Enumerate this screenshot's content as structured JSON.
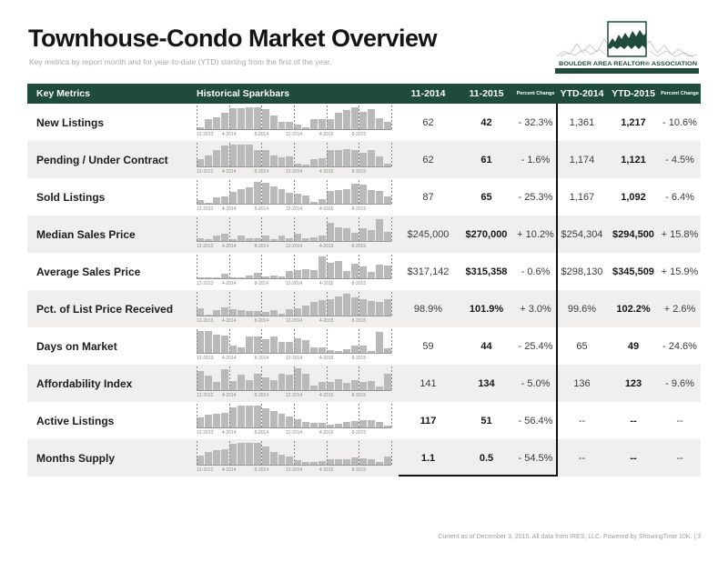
{
  "page": {
    "title": "Townhouse-Condo Market Overview",
    "subtitle": "Key metrics by report month and for year-to-date (YTD) starting from the first of the year.",
    "footer": "Current as of December 3, 2015. All data from IRES, LLC. Powered by ShowingTime 10K.  |  3"
  },
  "logo": {
    "text": "BOULDER AREA REALTOR® ASSOCIATION",
    "green": "#1f4c3a"
  },
  "colors": {
    "header_green": "#1f4c3a",
    "row_alt": "#f0efed",
    "bar_gray": "#b9b9b9"
  },
  "table": {
    "headers": {
      "key_metrics": "Key Metrics",
      "sparkbars": "Historical Sparkbars",
      "m2014": "11-2014",
      "m2015": "11-2015",
      "pct": "Percent Change",
      "ytd2014": "YTD-2014",
      "ytd2015": "YTD-2015",
      "ytd_pct": "Percent Change"
    },
    "spark_axis_labels": [
      "12-2013",
      "4-2014",
      "8-2014",
      "12-2014",
      "4-2015",
      "8-2015"
    ],
    "rows": [
      {
        "label": "New Listings",
        "m2014": "62",
        "m2015": "42",
        "pct": "- 32.3%",
        "ytd2014": "1,361",
        "ytd2015": "1,217",
        "ytd_pct": "- 10.6%",
        "bold_first": false,
        "spark": [
          8,
          45,
          52,
          75,
          92,
          95,
          100,
          100,
          88,
          62,
          30,
          33,
          17,
          5,
          42,
          44,
          42,
          72,
          85,
          100,
          78,
          88,
          48,
          33
        ]
      },
      {
        "label": "Pending / Under Contract",
        "m2014": "62",
        "m2015": "61",
        "pct": "- 1.6%",
        "ytd2014": "1,174",
        "ytd2015": "1,121",
        "ytd_pct": "- 4.5%",
        "bold_first": false,
        "spark": [
          30,
          50,
          72,
          95,
          100,
          100,
          100,
          75,
          72,
          50,
          38,
          45,
          10,
          5,
          30,
          35,
          72,
          75,
          78,
          72,
          62,
          72,
          45,
          12
        ]
      },
      {
        "label": "Sold Listings",
        "m2014": "87",
        "m2015": "65",
        "pct": "- 25.3%",
        "ytd2014": "1,167",
        "ytd2015": "1,092",
        "ytd_pct": "- 6.4%",
        "bold_first": false,
        "spark": [
          15,
          2,
          28,
          30,
          52,
          65,
          75,
          100,
          95,
          78,
          65,
          50,
          45,
          35,
          5,
          20,
          55,
          60,
          65,
          90,
          85,
          60,
          55,
          30
        ]
      },
      {
        "label": "Median Sales Price",
        "m2014": "$245,000",
        "m2015": "$270,000",
        "pct": "+ 10.2%",
        "ytd2014": "$254,304",
        "ytd2015": "$294,500",
        "ytd_pct": "+ 15.8%",
        "bold_first": false,
        "spark": [
          12,
          5,
          25,
          30,
          5,
          22,
          10,
          12,
          25,
          8,
          22,
          10,
          30,
          12,
          15,
          25,
          80,
          62,
          55,
          35,
          55,
          50,
          100,
          40
        ]
      },
      {
        "label": "Average Sales Price",
        "m2014": "$317,142",
        "m2015": "$315,358",
        "pct": "- 0.6%",
        "ytd2014": "$298,130",
        "ytd2015": "$345,509",
        "ytd_pct": "+ 15.9%",
        "bold_first": false,
        "spark": [
          2,
          2,
          2,
          18,
          3,
          2,
          12,
          22,
          5,
          12,
          8,
          30,
          35,
          40,
          35,
          100,
          70,
          78,
          30,
          65,
          52,
          28,
          62,
          55
        ]
      },
      {
        "label": "Pct. of List Price Received",
        "m2014": "98.9%",
        "m2015": "101.9%",
        "pct": "+ 3.0%",
        "ytd2014": "99.6%",
        "ytd2015": "102.2%",
        "ytd_pct": "+ 2.6%",
        "bold_first": false,
        "spark": [
          30,
          2,
          22,
          35,
          28,
          25,
          18,
          20,
          15,
          25,
          5,
          28,
          30,
          45,
          62,
          70,
          75,
          85,
          100,
          80,
          72,
          65,
          60,
          72
        ]
      },
      {
        "label": "Days on Market",
        "m2014": "59",
        "m2015": "44",
        "pct": "- 25.4%",
        "ytd2014": "65",
        "ytd2015": "49",
        "ytd_pct": "- 24.6%",
        "bold_first": false,
        "spark": [
          100,
          98,
          80,
          78,
          30,
          22,
          75,
          75,
          62,
          72,
          50,
          50,
          65,
          55,
          25,
          22,
          10,
          8,
          15,
          30,
          30,
          5,
          95,
          20
        ]
      },
      {
        "label": "Affordability Index",
        "m2014": "141",
        "m2015": "134",
        "pct": "- 5.0%",
        "ytd2014": "136",
        "ytd2015": "123",
        "ytd_pct": "- 9.6%",
        "bold_first": false,
        "spark": [
          85,
          65,
          35,
          95,
          40,
          70,
          45,
          75,
          55,
          45,
          75,
          70,
          100,
          75,
          20,
          35,
          35,
          50,
          30,
          45,
          35,
          40,
          15,
          75
        ]
      },
      {
        "label": "Active Listings",
        "m2014": "117",
        "m2015": "51",
        "pct": "- 56.4%",
        "ytd2014": "--",
        "ytd2015": "--",
        "ytd_pct": "--",
        "bold_first": true,
        "spark": [
          45,
          55,
          62,
          65,
          90,
          100,
          98,
          100,
          85,
          72,
          60,
          50,
          35,
          22,
          20,
          20,
          12,
          15,
          25,
          28,
          30,
          32,
          25,
          5
        ]
      },
      {
        "label": "Months Supply",
        "m2014": "1.1",
        "m2015": "0.5",
        "pct": "- 54.5%",
        "ytd2014": "--",
        "ytd2015": "--",
        "ytd_pct": "--",
        "bold_first": true,
        "spark": [
          40,
          55,
          65,
          70,
          95,
          100,
          98,
          100,
          80,
          55,
          42,
          35,
          20,
          12,
          10,
          15,
          22,
          25,
          25,
          30,
          28,
          22,
          10,
          35
        ]
      }
    ]
  }
}
